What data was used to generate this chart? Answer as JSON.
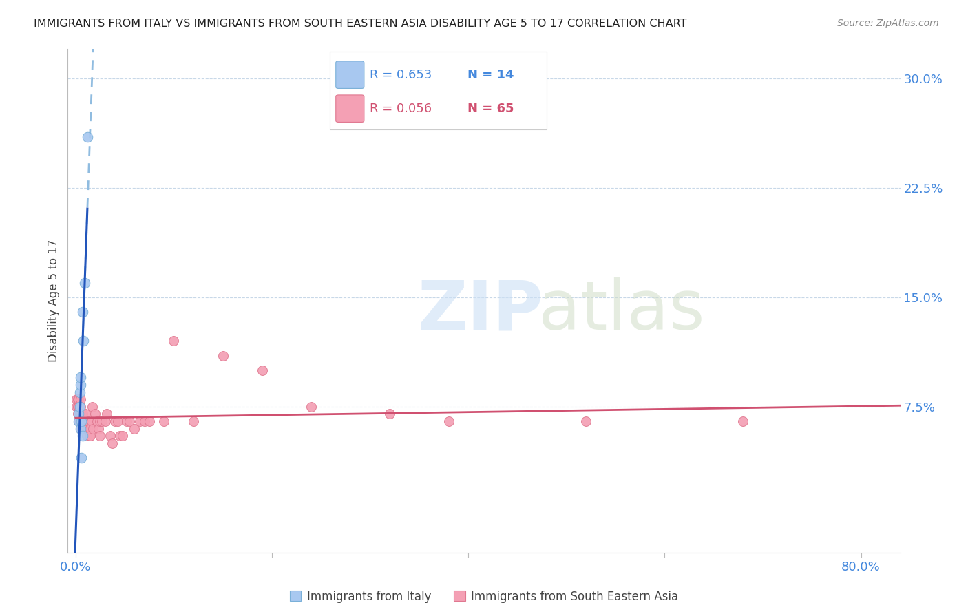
{
  "title": "IMMIGRANTS FROM ITALY VS IMMIGRANTS FROM SOUTH EASTERN ASIA DISABILITY AGE 5 TO 17 CORRELATION CHART",
  "source": "Source: ZipAtlas.com",
  "ylabel": "Disability Age 5 to 17",
  "ytick_vals": [
    0.075,
    0.15,
    0.225,
    0.3
  ],
  "ytick_labels": [
    "7.5%",
    "15.0%",
    "22.5%",
    "30.0%"
  ],
  "xtick_vals": [
    0.0,
    0.2,
    0.4,
    0.6,
    0.8
  ],
  "xtick_labels": [
    "0.0%",
    "",
    "",
    "",
    "80.0%"
  ],
  "xlim": [
    -0.008,
    0.84
  ],
  "ylim": [
    -0.025,
    0.32
  ],
  "italy_color": "#a8c8f0",
  "italy_edge": "#7ab0d8",
  "sea_color": "#f4a0b4",
  "sea_edge": "#e07890",
  "regression_italy_color": "#2255bb",
  "regression_sea_color": "#d05070",
  "regression_italy_dashed_color": "#90bce0",
  "legend_italy_label": "Immigrants from Italy",
  "legend_sea_label": "Immigrants from South Eastern Asia",
  "R_italy": "R = 0.653",
  "N_italy": "N = 14",
  "R_sea": "R = 0.056",
  "N_sea": "N = 65",
  "title_fontsize": 11.5,
  "source_fontsize": 10,
  "tick_fontsize": 13,
  "ylabel_fontsize": 12,
  "italy_x": [
    0.003,
    0.003,
    0.004,
    0.004,
    0.005,
    0.005,
    0.005,
    0.006,
    0.006,
    0.007,
    0.007,
    0.008,
    0.009,
    0.012
  ],
  "italy_y": [
    0.065,
    0.07,
    0.075,
    0.085,
    0.09,
    0.095,
    0.06,
    0.065,
    0.04,
    0.055,
    0.14,
    0.12,
    0.16,
    0.26
  ],
  "sea_x": [
    0.001,
    0.001,
    0.002,
    0.002,
    0.002,
    0.003,
    0.003,
    0.003,
    0.003,
    0.004,
    0.004,
    0.004,
    0.005,
    0.005,
    0.005,
    0.005,
    0.006,
    0.006,
    0.007,
    0.007,
    0.008,
    0.008,
    0.009,
    0.009,
    0.01,
    0.01,
    0.011,
    0.012,
    0.013,
    0.014,
    0.015,
    0.015,
    0.016,
    0.017,
    0.018,
    0.02,
    0.022,
    0.023,
    0.025,
    0.025,
    0.027,
    0.03,
    0.032,
    0.035,
    0.037,
    0.04,
    0.043,
    0.045,
    0.048,
    0.052,
    0.055,
    0.06,
    0.065,
    0.07,
    0.075,
    0.09,
    0.1,
    0.12,
    0.15,
    0.19,
    0.24,
    0.32,
    0.38,
    0.52,
    0.68
  ],
  "sea_y": [
    0.075,
    0.08,
    0.075,
    0.08,
    0.07,
    0.08,
    0.075,
    0.065,
    0.075,
    0.07,
    0.065,
    0.075,
    0.08,
    0.075,
    0.065,
    0.06,
    0.065,
    0.07,
    0.065,
    0.07,
    0.065,
    0.06,
    0.06,
    0.065,
    0.06,
    0.07,
    0.055,
    0.06,
    0.065,
    0.055,
    0.06,
    0.055,
    0.065,
    0.075,
    0.06,
    0.07,
    0.065,
    0.06,
    0.065,
    0.055,
    0.065,
    0.065,
    0.07,
    0.055,
    0.05,
    0.065,
    0.065,
    0.055,
    0.055,
    0.065,
    0.065,
    0.06,
    0.065,
    0.065,
    0.065,
    0.065,
    0.12,
    0.065,
    0.11,
    0.1,
    0.075,
    0.07,
    0.065,
    0.065,
    0.065
  ]
}
